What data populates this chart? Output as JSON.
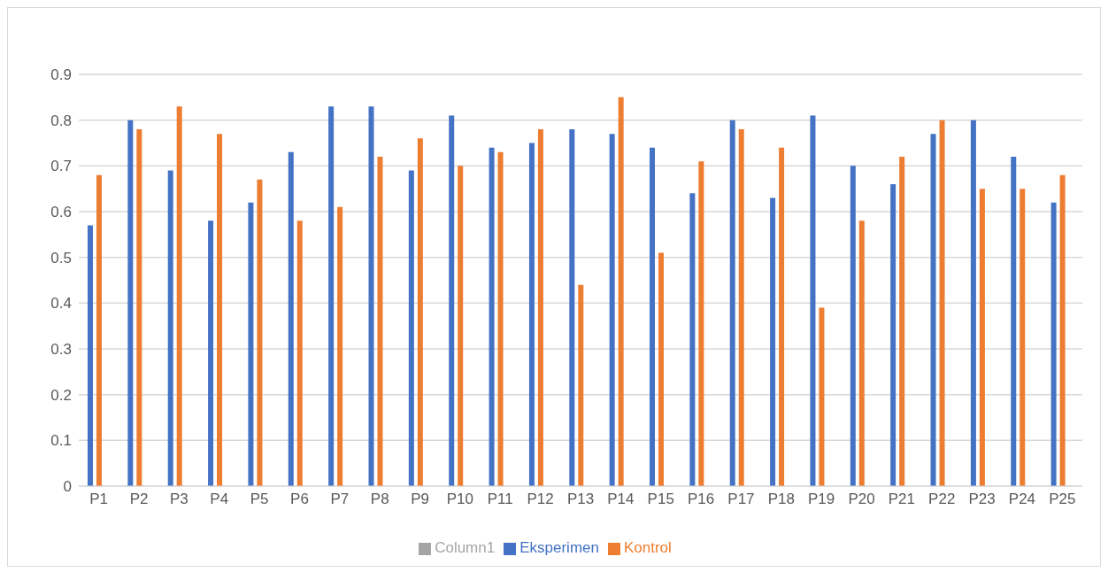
{
  "chart_data": {
    "type": "bar",
    "categories": [
      "P1",
      "P2",
      "P3",
      "P4",
      "P5",
      "P6",
      "P7",
      "P8",
      "P9",
      "P10",
      "P11",
      "P12",
      "P13",
      "P14",
      "P15",
      "P16",
      "P17",
      "P18",
      "P19",
      "P20",
      "P21",
      "P22",
      "P23",
      "P24",
      "P25"
    ],
    "series": [
      {
        "name": "Eksperimen",
        "color": "#4472c4",
        "values": [
          0.57,
          0.8,
          0.69,
          0.58,
          0.62,
          0.73,
          0.83,
          0.83,
          0.69,
          0.81,
          0.74,
          0.75,
          0.78,
          0.77,
          0.74,
          0.64,
          0.8,
          0.63,
          0.81,
          0.7,
          0.66,
          0.77,
          0.8,
          0.72,
          0.62
        ]
      },
      {
        "name": "Kontrol",
        "color": "#ed7d31",
        "values": [
          0.68,
          0.78,
          0.83,
          0.77,
          0.67,
          0.58,
          0.61,
          0.72,
          0.76,
          0.7,
          0.73,
          0.78,
          0.44,
          0.85,
          0.51,
          0.71,
          0.78,
          0.74,
          0.39,
          0.58,
          0.72,
          0.8,
          0.65,
          0.65,
          0.68
        ]
      },
      {
        "name": "Column1",
        "color": "#a5a5a5",
        "values": [
          null,
          null,
          null,
          null,
          null,
          null,
          null,
          null,
          null,
          null,
          null,
          null,
          null,
          null,
          null,
          null,
          null,
          null,
          null,
          null,
          null,
          null,
          null,
          null,
          null
        ]
      }
    ],
    "ylim": [
      0,
      0.9
    ],
    "yticks": [
      0,
      0.1,
      0.2,
      0.3,
      0.4,
      0.5,
      0.6,
      0.7,
      0.8,
      0.9
    ],
    "grid": "y",
    "legend": "bottom"
  }
}
